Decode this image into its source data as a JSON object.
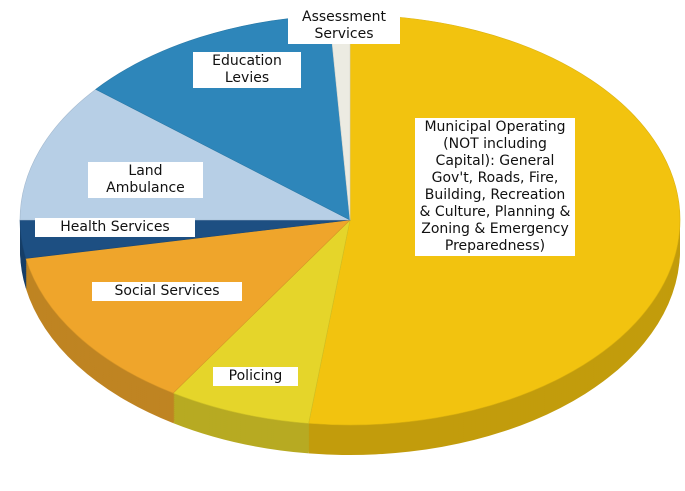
{
  "chart_data": {
    "type": "pie",
    "categories": [
      "Municipal Operating (NOT including Capital): General Gov't, Roads, Fire, Building, Recreation & Culture, Planning & Zoning & Emergency Preparedness)",
      "Policing",
      "Social Services",
      "Health Services",
      "Land Ambulance",
      "Education Levies",
      "Assessment Services"
    ],
    "values": [
      52,
      7,
      13,
      3,
      11,
      13,
      1
    ],
    "colors": [
      "#f2c30f",
      "#e5d52a",
      "#efa52b",
      "#1d4f82",
      "#b7cfe6",
      "#2e86ba",
      "#ecebe2"
    ]
  }
}
